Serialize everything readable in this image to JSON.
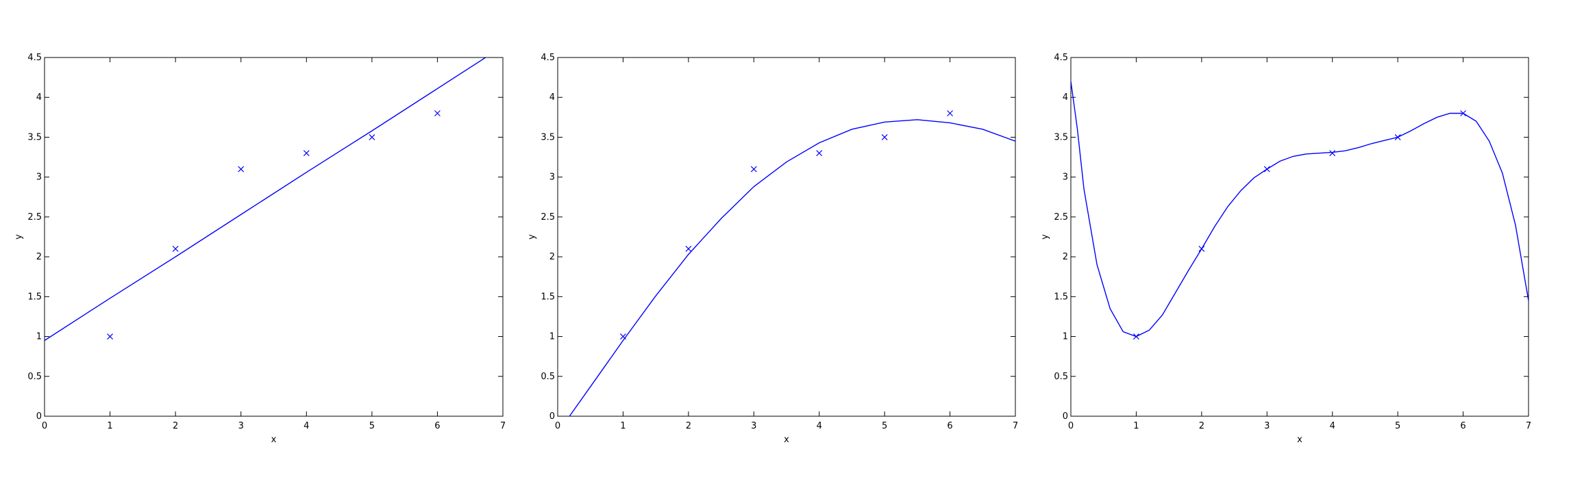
{
  "colors": {
    "series": "#0000ff",
    "axes": "#000000",
    "background": "#ffffff"
  },
  "chart_data": [
    {
      "type": "line",
      "title": "",
      "xlabel": "x",
      "ylabel": "y",
      "xlim": [
        0,
        7
      ],
      "ylim": [
        0,
        4.5
      ],
      "xticks": [
        "0",
        "1",
        "2",
        "3",
        "4",
        "5",
        "6",
        "7"
      ],
      "yticks": [
        "0",
        "0.5",
        "1",
        "1.5",
        "2",
        "2.5",
        "3",
        "3.5",
        "4",
        "4.5"
      ],
      "grid": false,
      "legend": "none",
      "points": {
        "marker": "x",
        "x": [
          1,
          2,
          3,
          4,
          5,
          6
        ],
        "y": [
          1.0,
          2.1,
          3.1,
          3.3,
          3.5,
          3.8
        ]
      },
      "fit": {
        "x": [
          0,
          1,
          2,
          3,
          4,
          5,
          6,
          7
        ],
        "y": [
          0.95,
          1.48,
          2.0,
          2.53,
          3.06,
          3.58,
          4.11,
          4.64
        ]
      }
    },
    {
      "type": "line",
      "title": "",
      "xlabel": "x",
      "ylabel": "y",
      "xlim": [
        0,
        7
      ],
      "ylim": [
        0,
        4.5
      ],
      "xticks": [
        "0",
        "1",
        "2",
        "3",
        "4",
        "5",
        "6",
        "7"
      ],
      "yticks": [
        "0",
        "0.5",
        "1",
        "1.5",
        "2",
        "2.5",
        "3",
        "3.5",
        "4",
        "4.5"
      ],
      "grid": false,
      "legend": "none",
      "points": {
        "marker": "x",
        "x": [
          1,
          2,
          3,
          4,
          5,
          6
        ],
        "y": [
          1.0,
          2.1,
          3.1,
          3.3,
          3.5,
          3.8
        ]
      },
      "fit": {
        "x": [
          0.18,
          0.5,
          1,
          1.5,
          2,
          2.5,
          3,
          3.5,
          4,
          4.5,
          5,
          5.5,
          6,
          6.5,
          7
        ],
        "y": [
          0.0,
          0.37,
          0.95,
          1.51,
          2.03,
          2.48,
          2.88,
          3.19,
          3.43,
          3.6,
          3.69,
          3.72,
          3.68,
          3.6,
          3.45
        ]
      }
    },
    {
      "type": "line",
      "title": "",
      "xlabel": "x",
      "ylabel": "y",
      "xlim": [
        0,
        7
      ],
      "ylim": [
        0,
        4.5
      ],
      "xticks": [
        "0",
        "1",
        "2",
        "3",
        "4",
        "5",
        "6",
        "7"
      ],
      "yticks": [
        "0",
        "0.5",
        "1",
        "1.5",
        "2",
        "2.5",
        "3",
        "3.5",
        "4",
        "4.5"
      ],
      "grid": false,
      "legend": "none",
      "points": {
        "marker": "x",
        "x": [
          1,
          2,
          3,
          4,
          5,
          6
        ],
        "y": [
          1.0,
          2.1,
          3.1,
          3.3,
          3.5,
          3.8
        ]
      },
      "fit": {
        "x": [
          0,
          0.1,
          0.2,
          0.4,
          0.6,
          0.8,
          1,
          1.2,
          1.4,
          1.6,
          1.8,
          2,
          2.2,
          2.4,
          2.6,
          2.8,
          3,
          3.2,
          3.4,
          3.6,
          3.8,
          4,
          4.2,
          4.4,
          4.6,
          4.8,
          5,
          5.2,
          5.4,
          5.6,
          5.8,
          6,
          6.2,
          6.4,
          6.6,
          6.8,
          7
        ],
        "y": [
          4.2,
          3.6,
          2.85,
          1.9,
          1.35,
          1.06,
          1.0,
          1.08,
          1.27,
          1.55,
          1.83,
          2.1,
          2.38,
          2.63,
          2.83,
          2.99,
          3.1,
          3.2,
          3.26,
          3.29,
          3.3,
          3.31,
          3.33,
          3.37,
          3.42,
          3.46,
          3.5,
          3.58,
          3.67,
          3.75,
          3.8,
          3.8,
          3.7,
          3.45,
          3.05,
          2.4,
          1.45
        ]
      }
    }
  ]
}
